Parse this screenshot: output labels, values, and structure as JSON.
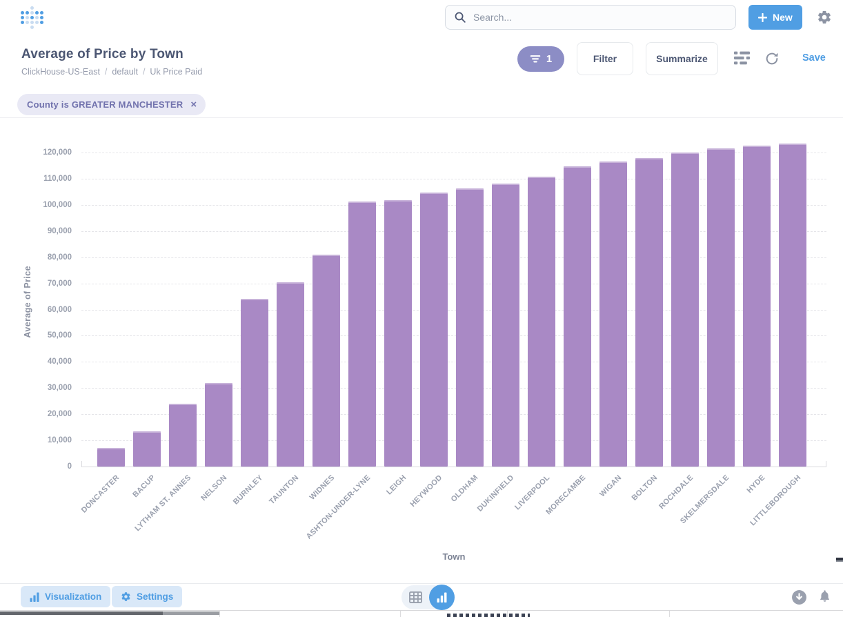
{
  "app": {
    "logo": "metabase-dot-logo",
    "search": {
      "placeholder": "Search..."
    },
    "new_button": {
      "label": "New"
    }
  },
  "question": {
    "title": "Average of Price by Town",
    "breadcrumb": {
      "database": "ClickHouse-US-East",
      "sep": "/",
      "schema": "default",
      "table": "Uk Price Paid"
    },
    "toolbar": {
      "filter_count": "1",
      "filter_label": "Filter",
      "summarize_label": "Summarize",
      "save_label": "Save"
    },
    "filter_chip": {
      "label": "County is GREATER MANCHESTER",
      "close_glyph": "×"
    }
  },
  "chart_data": {
    "type": "bar",
    "title": "Average of Price by Town",
    "xlabel": "Town",
    "ylabel": "Average of Price",
    "ylim": [
      0,
      130000
    ],
    "yticks": [
      0,
      10000,
      20000,
      30000,
      40000,
      50000,
      60000,
      70000,
      80000,
      90000,
      100000,
      110000,
      120000
    ],
    "grid": "horizontal-dashed",
    "legend": "none",
    "bar_color": "#A989C5",
    "categories": [
      "DONCASTER",
      "BACUP",
      "LYTHAM ST. ANNES",
      "NELSON",
      "BURNLEY",
      "TAUNTON",
      "WIDNES",
      "ASHTON-UNDER-LYNE",
      "LEIGH",
      "HEYWOOD",
      "OLDHAM",
      "DUKINFIELD",
      "LIVERPOOL",
      "MORECAMBE",
      "WIGAN",
      "BOLTON",
      "ROCHDALE",
      "SKELMERSDALE",
      "HYDE",
      "LITTLEBOROUGH"
    ],
    "values": [
      7200,
      13400,
      24100,
      31900,
      64100,
      70500,
      81000,
      101200,
      101800,
      104700,
      106300,
      108200,
      110800,
      114800,
      116600,
      118000,
      120000,
      121700,
      122700,
      123500
    ]
  },
  "footer": {
    "visualization_label": "Visualization",
    "settings_label": "Settings",
    "view_toggle_active": "chart"
  },
  "colors": {
    "brand_blue": "#509EE3",
    "bar_purple": "#A989C5",
    "filter_purple": "#7172AD",
    "filter_pill_bg": "#8C8DC5",
    "chip_bg": "#E9E9F5",
    "text_dark": "#4C5773",
    "text_gray": "#949AAB"
  }
}
